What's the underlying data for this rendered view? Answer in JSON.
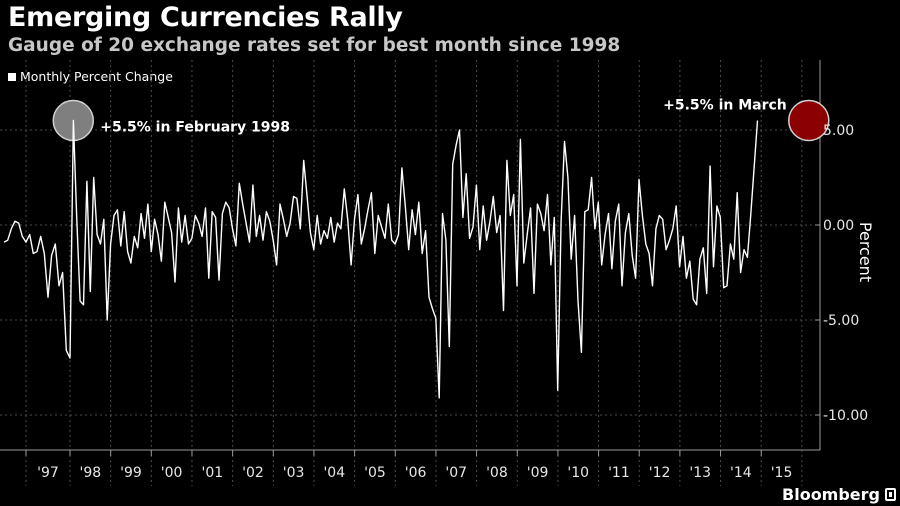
{
  "chart_data": {
    "type": "line",
    "title": "Emerging Currencies Rally",
    "subtitle": "Gauge of 20 exchange rates set for best month since 1998",
    "legend": {
      "label": "Monthly Percent Change",
      "placement": "top-left"
    },
    "ylabel": "Percent",
    "ylim": [
      -10.5,
      8.5
    ],
    "yticks": [
      5,
      0,
      -5,
      -10
    ],
    "ytick_labels": [
      "5.00",
      "0.00",
      "-5.00",
      "-10.00"
    ],
    "xlim": [
      1997.0,
      1998.0,
      2016.2
    ],
    "x_tick_labels": [
      "'97",
      "'98",
      "'99",
      "'00",
      "'01",
      "'02",
      "'03",
      "'04",
      "'05",
      "'06",
      "'07",
      "'08",
      "'09",
      "'10",
      "'11",
      "'12",
      "'13",
      "'14",
      "'15"
    ],
    "x_tick_years": [
      1997,
      1998,
      1999,
      2000,
      2001,
      2002,
      2003,
      2004,
      2005,
      2006,
      2007,
      2008,
      2009,
      2010,
      2011,
      2012,
      2013,
      2014,
      2015
    ],
    "grid": true,
    "x_start": 1996.5,
    "x_step": 0.0833,
    "series": [
      {
        "name": "Monthly Percent Change",
        "color": "#ffffff",
        "values": [
          -0.9,
          -0.8,
          -0.2,
          0.2,
          0.1,
          -0.6,
          -0.9,
          -0.5,
          -1.5,
          -1.4,
          -0.6,
          -1.5,
          -3.8,
          -1.6,
          -1.0,
          -3.2,
          -2.5,
          -6.6,
          -7.0,
          5.5,
          0.4,
          -4.0,
          -4.2,
          2.3,
          -3.5,
          2.5,
          -0.5,
          -1.0,
          0.3,
          -5.0,
          -1.0,
          0.5,
          0.8,
          -1.1,
          0.7,
          -1.4,
          -2.0,
          -0.6,
          -1.2,
          0.6,
          -0.7,
          1.1,
          -1.4,
          0.3,
          -0.5,
          -1.9,
          1.2,
          0.4,
          -0.4,
          -3.0,
          0.9,
          -0.9,
          0.5,
          -1.0,
          -0.7,
          0.5,
          0.1,
          -0.6,
          0.9,
          -2.8,
          0.7,
          0.4,
          -2.9,
          0.6,
          1.2,
          0.9,
          -0.2,
          -1.1,
          2.2,
          1.1,
          0.1,
          -0.9,
          2.1,
          -0.6,
          0.5,
          -0.8,
          0.7,
          0.2,
          -0.8,
          -2.1,
          1.1,
          0.3,
          -0.6,
          0.1,
          1.5,
          1.4,
          -0.2,
          3.4,
          1.5,
          -0.4,
          -1.3,
          0.5,
          -1.0,
          -0.3,
          -0.7,
          0.4,
          -0.9,
          0.1,
          -0.2,
          1.9,
          0.3,
          -2.1,
          0.3,
          1.6,
          -1.0,
          -0.2,
          0.8,
          1.7,
          -1.5,
          0.5,
          -0.1,
          -0.7,
          1.1,
          -0.8,
          -1.0,
          -0.5,
          3.0,
          1.0,
          -1.3,
          0.8,
          -0.5,
          1.2,
          -1.5,
          -0.3,
          -3.8,
          -4.4,
          -4.9,
          -9.1,
          0.6,
          -0.8,
          -6.4,
          3.2,
          4.2,
          5.0,
          0.4,
          2.7,
          -0.7,
          -0.1,
          2.1,
          -1.3,
          1.0,
          -0.8,
          0.2,
          1.5,
          -0.4,
          0.5,
          -4.5,
          3.4,
          0.5,
          1.6,
          -3.2,
          4.5,
          -2.0,
          -0.5,
          0.9,
          -3.6,
          1.1,
          0.6,
          -0.3,
          1.6,
          -2.1,
          0.4,
          -8.7,
          0.2,
          4.4,
          2.5,
          -1.8,
          0.5,
          -4.0,
          -6.7,
          0.7,
          0.8,
          2.5,
          -0.2,
          1.2,
          -2.1,
          -0.5,
          0.6,
          -2.3,
          0.2,
          1.1,
          -3.2,
          -0.4,
          0.6,
          -1.6,
          -2.8,
          2.4,
          0.5,
          -1.0,
          -1.5,
          -3.2,
          -0.2,
          0.5,
          0.3,
          -1.3,
          -0.8,
          -0.2,
          1.0,
          -2.2,
          -0.6,
          -2.8,
          -1.9,
          -3.9,
          -4.2,
          -1.8,
          -1.2,
          -3.6,
          3.1,
          -2.2,
          1.0,
          0.4,
          -3.3,
          -3.2,
          -1.0,
          -1.8,
          1.7,
          -2.5,
          -1.3,
          -1.7,
          0.5,
          3.0,
          5.5
        ]
      }
    ],
    "annotations": [
      {
        "text": "+5.5% in February 1998",
        "x": 1998.08,
        "y": 5.5,
        "marker_color": "#7f7f7f"
      },
      {
        "text": "+5.5% in March",
        "x": 2016.17,
        "y": 5.5,
        "marker_color": "#8b0000"
      }
    ]
  },
  "branding": {
    "name": "Bloomberg"
  }
}
